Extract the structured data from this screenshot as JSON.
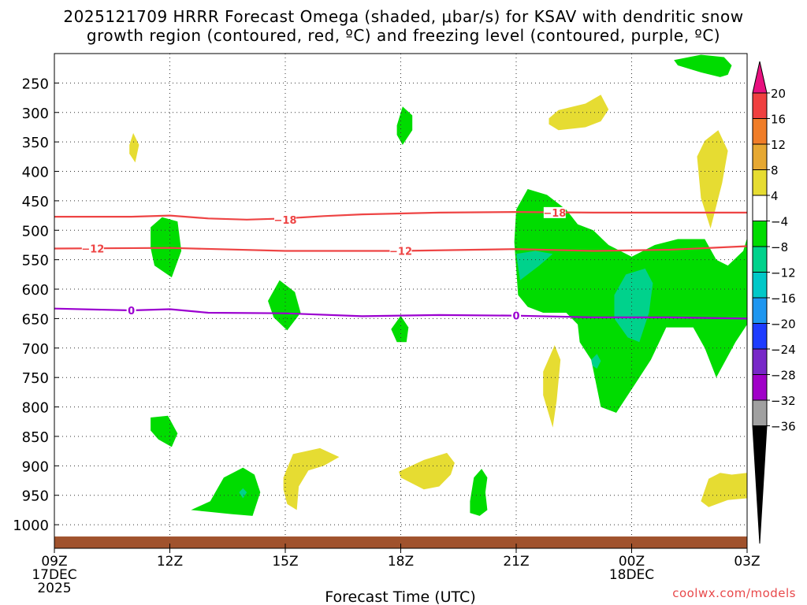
{
  "title": {
    "line1": "2025121709 HRRR Forecast Omega (shaded, μbar/s) for KSAV with dendritic snow",
    "line2": "growth region (contoured, red, ºC) and freezing level (contoured, purple, ºC)"
  },
  "credit": "coolwx.com/models",
  "chart_data": {
    "type": "time-height-contour",
    "title": "2025121709 HRRR Forecast Omega (shaded, μbar/s) for KSAV with dendritic snow growth region (contoured, red, ºC) and freezing level (contoured, purple, ºC)",
    "xlabel": "Forecast Time (UTC)",
    "ylabel": "",
    "x_unit": "hours from 09Z 17DEC 2025",
    "xlim": [
      0,
      18
    ],
    "ylim": [
      1040,
      200
    ],
    "x_ticks": [
      {
        "x": 0,
        "lines": [
          "09Z",
          "17DEC",
          "2025"
        ]
      },
      {
        "x": 3,
        "lines": [
          "12Z"
        ]
      },
      {
        "x": 6,
        "lines": [
          "15Z"
        ]
      },
      {
        "x": 9,
        "lines": [
          "18Z"
        ]
      },
      {
        "x": 12,
        "lines": [
          "21Z"
        ]
      },
      {
        "x": 15,
        "lines": [
          "00Z",
          "18DEC"
        ]
      },
      {
        "x": 18,
        "lines": [
          "03Z"
        ]
      }
    ],
    "y_ticks": [
      250,
      300,
      350,
      400,
      450,
      500,
      550,
      600,
      650,
      700,
      750,
      800,
      850,
      900,
      950,
      1000
    ],
    "grid": true,
    "ground_pressure": 1020,
    "colorbar": {
      "labels": [
        "20",
        "16",
        "12",
        "8",
        "4",
        "−4",
        "−8",
        "−12",
        "−16",
        "−20",
        "−24",
        "−28",
        "−32",
        "−36"
      ],
      "bins": [
        {
          "range": "> 20",
          "color": "#e8117f"
        },
        {
          "range": "16 to 20",
          "color": "#f04040"
        },
        {
          "range": "12 to 16",
          "color": "#f07d28"
        },
        {
          "range": "8 to 12",
          "color": "#e6a832"
        },
        {
          "range": "4 to 8",
          "color": "#e6dc32"
        },
        {
          "range": "-4 to 4",
          "color": "#ffffff"
        },
        {
          "range": "-8 to -4",
          "color": "#00dc00"
        },
        {
          "range": "-12 to -8",
          "color": "#00d28c"
        },
        {
          "range": "-16 to -12",
          "color": "#00c8c8"
        },
        {
          "range": "-20 to -16",
          "color": "#1e96f0"
        },
        {
          "range": "-24 to -20",
          "color": "#1e3cff"
        },
        {
          "range": "-28 to -24",
          "color": "#7828c8"
        },
        {
          "range": "-32 to -28",
          "color": "#a000c8"
        },
        {
          "range": "-36 to -32",
          "color": "#a0a0a0"
        },
        {
          "range": "< -36",
          "color": "#000000"
        }
      ]
    },
    "contours": [
      {
        "name": "dgz-minus18",
        "label": "−18",
        "color": "#ee4444",
        "points": [
          [
            0,
            477
          ],
          [
            2,
            477
          ],
          [
            3,
            475
          ],
          [
            4,
            480
          ],
          [
            5,
            482
          ],
          [
            6,
            480
          ],
          [
            7,
            476
          ],
          [
            8,
            473
          ],
          [
            10,
            470
          ],
          [
            12,
            469
          ],
          [
            14,
            470
          ],
          [
            16,
            470
          ],
          [
            18,
            470
          ]
        ],
        "label_at": [
          [
            6,
            482
          ],
          [
            13,
            470
          ]
        ]
      },
      {
        "name": "dgz-minus12",
        "label": "−12",
        "color": "#ee4444",
        "points": [
          [
            0,
            531
          ],
          [
            3,
            530
          ],
          [
            6,
            535
          ],
          [
            9,
            535
          ],
          [
            12,
            532
          ],
          [
            14,
            535
          ],
          [
            16,
            533
          ],
          [
            18,
            527
          ]
        ],
        "label_at": [
          [
            1,
            531
          ],
          [
            9,
            535
          ]
        ]
      },
      {
        "name": "freezing-level",
        "label": "0",
        "color": "#9b00d0",
        "points": [
          [
            0,
            633
          ],
          [
            2,
            636
          ],
          [
            3,
            634
          ],
          [
            4,
            640
          ],
          [
            6,
            641
          ],
          [
            8,
            646
          ],
          [
            10,
            644
          ],
          [
            12,
            645
          ],
          [
            14,
            648
          ],
          [
            16,
            648
          ],
          [
            18,
            650
          ]
        ],
        "label_at": [
          [
            2,
            636
          ],
          [
            12,
            645
          ]
        ]
      }
    ],
    "shaded_regions": [
      {
        "name": "omega-green-high-topright",
        "value_bin": "-8 to -4",
        "color": "#00dc00",
        "points": [
          [
            16.1,
            211
          ],
          [
            16.8,
            202
          ],
          [
            17.4,
            206
          ],
          [
            17.6,
            220
          ],
          [
            17.5,
            236
          ],
          [
            17.3,
            240
          ],
          [
            16.8,
            232
          ],
          [
            16.2,
            220
          ]
        ]
      },
      {
        "name": "omega-green-upper",
        "value_bin": "-8 to -4",
        "color": "#00dc00",
        "points": [
          [
            8.9,
            322
          ],
          [
            9.05,
            290
          ],
          [
            9.3,
            305
          ],
          [
            9.3,
            330
          ],
          [
            9.05,
            355
          ],
          [
            8.9,
            338
          ]
        ]
      },
      {
        "name": "omega-green-mid-left",
        "value_bin": "-8 to -4",
        "color": "#00dc00",
        "points": [
          [
            2.5,
            495
          ],
          [
            2.8,
            478
          ],
          [
            3.2,
            485
          ],
          [
            3.3,
            535
          ],
          [
            3.05,
            580
          ],
          [
            2.6,
            560
          ],
          [
            2.5,
            530
          ]
        ]
      },
      {
        "name": "omega-green-large-east",
        "value_bin": "-8 to -4",
        "color": "#00dc00",
        "points": [
          [
            11.95,
            520
          ],
          [
            12,
            465
          ],
          [
            12.3,
            430
          ],
          [
            12.8,
            440
          ],
          [
            13.3,
            465
          ],
          [
            13.6,
            490
          ],
          [
            14,
            500
          ],
          [
            14.4,
            525
          ],
          [
            15,
            545
          ],
          [
            15.6,
            525
          ],
          [
            16.2,
            515
          ],
          [
            16.9,
            515
          ],
          [
            17.2,
            550
          ],
          [
            17.5,
            560
          ],
          [
            17.9,
            535
          ],
          [
            18,
            513
          ],
          [
            18,
            660
          ],
          [
            17.7,
            690
          ],
          [
            17.2,
            750
          ],
          [
            16.9,
            700
          ],
          [
            16.6,
            665
          ],
          [
            15.9,
            665
          ],
          [
            15.5,
            720
          ],
          [
            15.1,
            760
          ],
          [
            14.6,
            810
          ],
          [
            14.2,
            800
          ],
          [
            13.95,
            720
          ],
          [
            13.65,
            690
          ],
          [
            13.6,
            660
          ],
          [
            13.3,
            640
          ],
          [
            12.7,
            640
          ],
          [
            12.3,
            630
          ],
          [
            12.05,
            610
          ]
        ]
      },
      {
        "name": "omega-green-mid-1",
        "value_bin": "-8 to -4",
        "color": "#00dc00",
        "points": [
          [
            5.55,
            620
          ],
          [
            5.85,
            585
          ],
          [
            6.25,
            605
          ],
          [
            6.4,
            640
          ],
          [
            6.05,
            670
          ],
          [
            5.7,
            648
          ]
        ]
      },
      {
        "name": "omega-green-mid-2",
        "value_bin": "-8 to -4",
        "color": "#00dc00",
        "points": [
          [
            8.75,
            668
          ],
          [
            9.0,
            645
          ],
          [
            9.2,
            665
          ],
          [
            9.15,
            690
          ],
          [
            8.9,
            690
          ]
        ]
      },
      {
        "name": "omega-green-low-1",
        "value_bin": "-8 to -4",
        "color": "#00dc00",
        "points": [
          [
            2.5,
            818
          ],
          [
            2.95,
            815
          ],
          [
            3.2,
            845
          ],
          [
            3.05,
            868
          ],
          [
            2.7,
            855
          ],
          [
            2.5,
            840
          ]
        ]
      },
      {
        "name": "omega-green-low-2",
        "value_bin": "-8 to -4",
        "color": "#00dc00",
        "points": [
          [
            3.55,
            975
          ],
          [
            4.05,
            960
          ],
          [
            4.4,
            920
          ],
          [
            4.9,
            903
          ],
          [
            5.2,
            915
          ],
          [
            5.35,
            945
          ],
          [
            5.15,
            985
          ],
          [
            4.6,
            982
          ],
          [
            4.0,
            978
          ]
        ]
      },
      {
        "name": "omega-green-low-3",
        "value_bin": "-8 to -4",
        "color": "#00dc00",
        "points": [
          [
            10.8,
            960
          ],
          [
            10.9,
            920
          ],
          [
            11.1,
            905
          ],
          [
            11.25,
            920
          ],
          [
            11.2,
            945
          ],
          [
            11.25,
            975
          ],
          [
            11.05,
            985
          ],
          [
            10.8,
            980
          ]
        ]
      },
      {
        "name": "omega-teal-1",
        "value_bin": "-12 to -8",
        "color": "#00d28c",
        "points": [
          [
            12,
            540
          ],
          [
            12.5,
            535
          ],
          [
            12.95,
            540
          ],
          [
            12.6,
            560
          ],
          [
            12.1,
            585
          ]
        ]
      },
      {
        "name": "omega-teal-2",
        "value_bin": "-12 to -8",
        "color": "#00d28c",
        "points": [
          [
            14.55,
            610
          ],
          [
            14.85,
            575
          ],
          [
            15.35,
            565
          ],
          [
            15.55,
            590
          ],
          [
            15.45,
            640
          ],
          [
            15.2,
            690
          ],
          [
            14.9,
            682
          ],
          [
            14.55,
            650
          ]
        ]
      },
      {
        "name": "omega-teal-3",
        "value_bin": "-12 to -8",
        "color": "#00d28c",
        "points": [
          [
            13.95,
            720
          ],
          [
            14.1,
            710
          ],
          [
            14.2,
            722
          ],
          [
            14.1,
            735
          ],
          [
            13.98,
            730
          ]
        ]
      },
      {
        "name": "omega-teal-4",
        "value_bin": "-12 to -8",
        "color": "#00d28c",
        "points": [
          [
            4.8,
            945
          ],
          [
            4.9,
            938
          ],
          [
            5.0,
            945
          ],
          [
            4.9,
            955
          ]
        ]
      },
      {
        "name": "omega-yellow-left",
        "value_bin": "4 to 8",
        "color": "#e6dc32",
        "points": [
          [
            1.95,
            355
          ],
          [
            2.05,
            335
          ],
          [
            2.2,
            355
          ],
          [
            2.1,
            385
          ],
          [
            1.95,
            370
          ]
        ]
      },
      {
        "name": "omega-yellow-upper-right",
        "value_bin": "4 to 8",
        "color": "#e6dc32",
        "points": [
          [
            12.85,
            310
          ],
          [
            13.1,
            296
          ],
          [
            13.8,
            285
          ],
          [
            14.2,
            270
          ],
          [
            14.4,
            295
          ],
          [
            14.2,
            315
          ],
          [
            13.8,
            325
          ],
          [
            13.1,
            330
          ],
          [
            12.85,
            320
          ]
        ]
      },
      {
        "name": "omega-yellow-right-1",
        "value_bin": "4 to 8",
        "color": "#e6dc32",
        "points": [
          [
            16.7,
            375
          ],
          [
            16.9,
            348
          ],
          [
            17.25,
            330
          ],
          [
            17.5,
            365
          ],
          [
            17.35,
            420
          ],
          [
            17.05,
            497
          ],
          [
            16.8,
            445
          ]
        ]
      },
      {
        "name": "omega-yellow-right-2",
        "value_bin": "4 to 8",
        "color": "#e6dc32",
        "points": [
          [
            12.7,
            740
          ],
          [
            13,
            695
          ],
          [
            13.15,
            720
          ],
          [
            13.05,
            790
          ],
          [
            12.95,
            835
          ],
          [
            12.7,
            780
          ]
        ]
      },
      {
        "name": "omega-yellow-low-1",
        "value_bin": "4 to 8",
        "color": "#e6dc32",
        "points": [
          [
            5.95,
            920
          ],
          [
            6.2,
            880
          ],
          [
            6.9,
            870
          ],
          [
            7.4,
            885
          ],
          [
            7.0,
            900
          ],
          [
            6.6,
            908
          ],
          [
            6.35,
            935
          ],
          [
            6.3,
            975
          ],
          [
            6.05,
            965
          ],
          [
            5.95,
            940
          ]
        ]
      },
      {
        "name": "omega-yellow-low-2",
        "value_bin": "4 to 8",
        "color": "#e6dc32",
        "points": [
          [
            8.95,
            910
          ],
          [
            9.6,
            890
          ],
          [
            10.2,
            878
          ],
          [
            10.4,
            895
          ],
          [
            10.3,
            915
          ],
          [
            10.0,
            935
          ],
          [
            9.6,
            940
          ],
          [
            9.0,
            920
          ]
        ]
      },
      {
        "name": "omega-yellow-low-3",
        "value_bin": "4 to 8",
        "color": "#e6dc32",
        "points": [
          [
            16.8,
            960
          ],
          [
            17.0,
            922
          ],
          [
            17.3,
            912
          ],
          [
            17.6,
            915
          ],
          [
            18,
            912
          ],
          [
            18,
            955
          ],
          [
            17.5,
            958
          ],
          [
            17.0,
            970
          ]
        ]
      }
    ]
  }
}
